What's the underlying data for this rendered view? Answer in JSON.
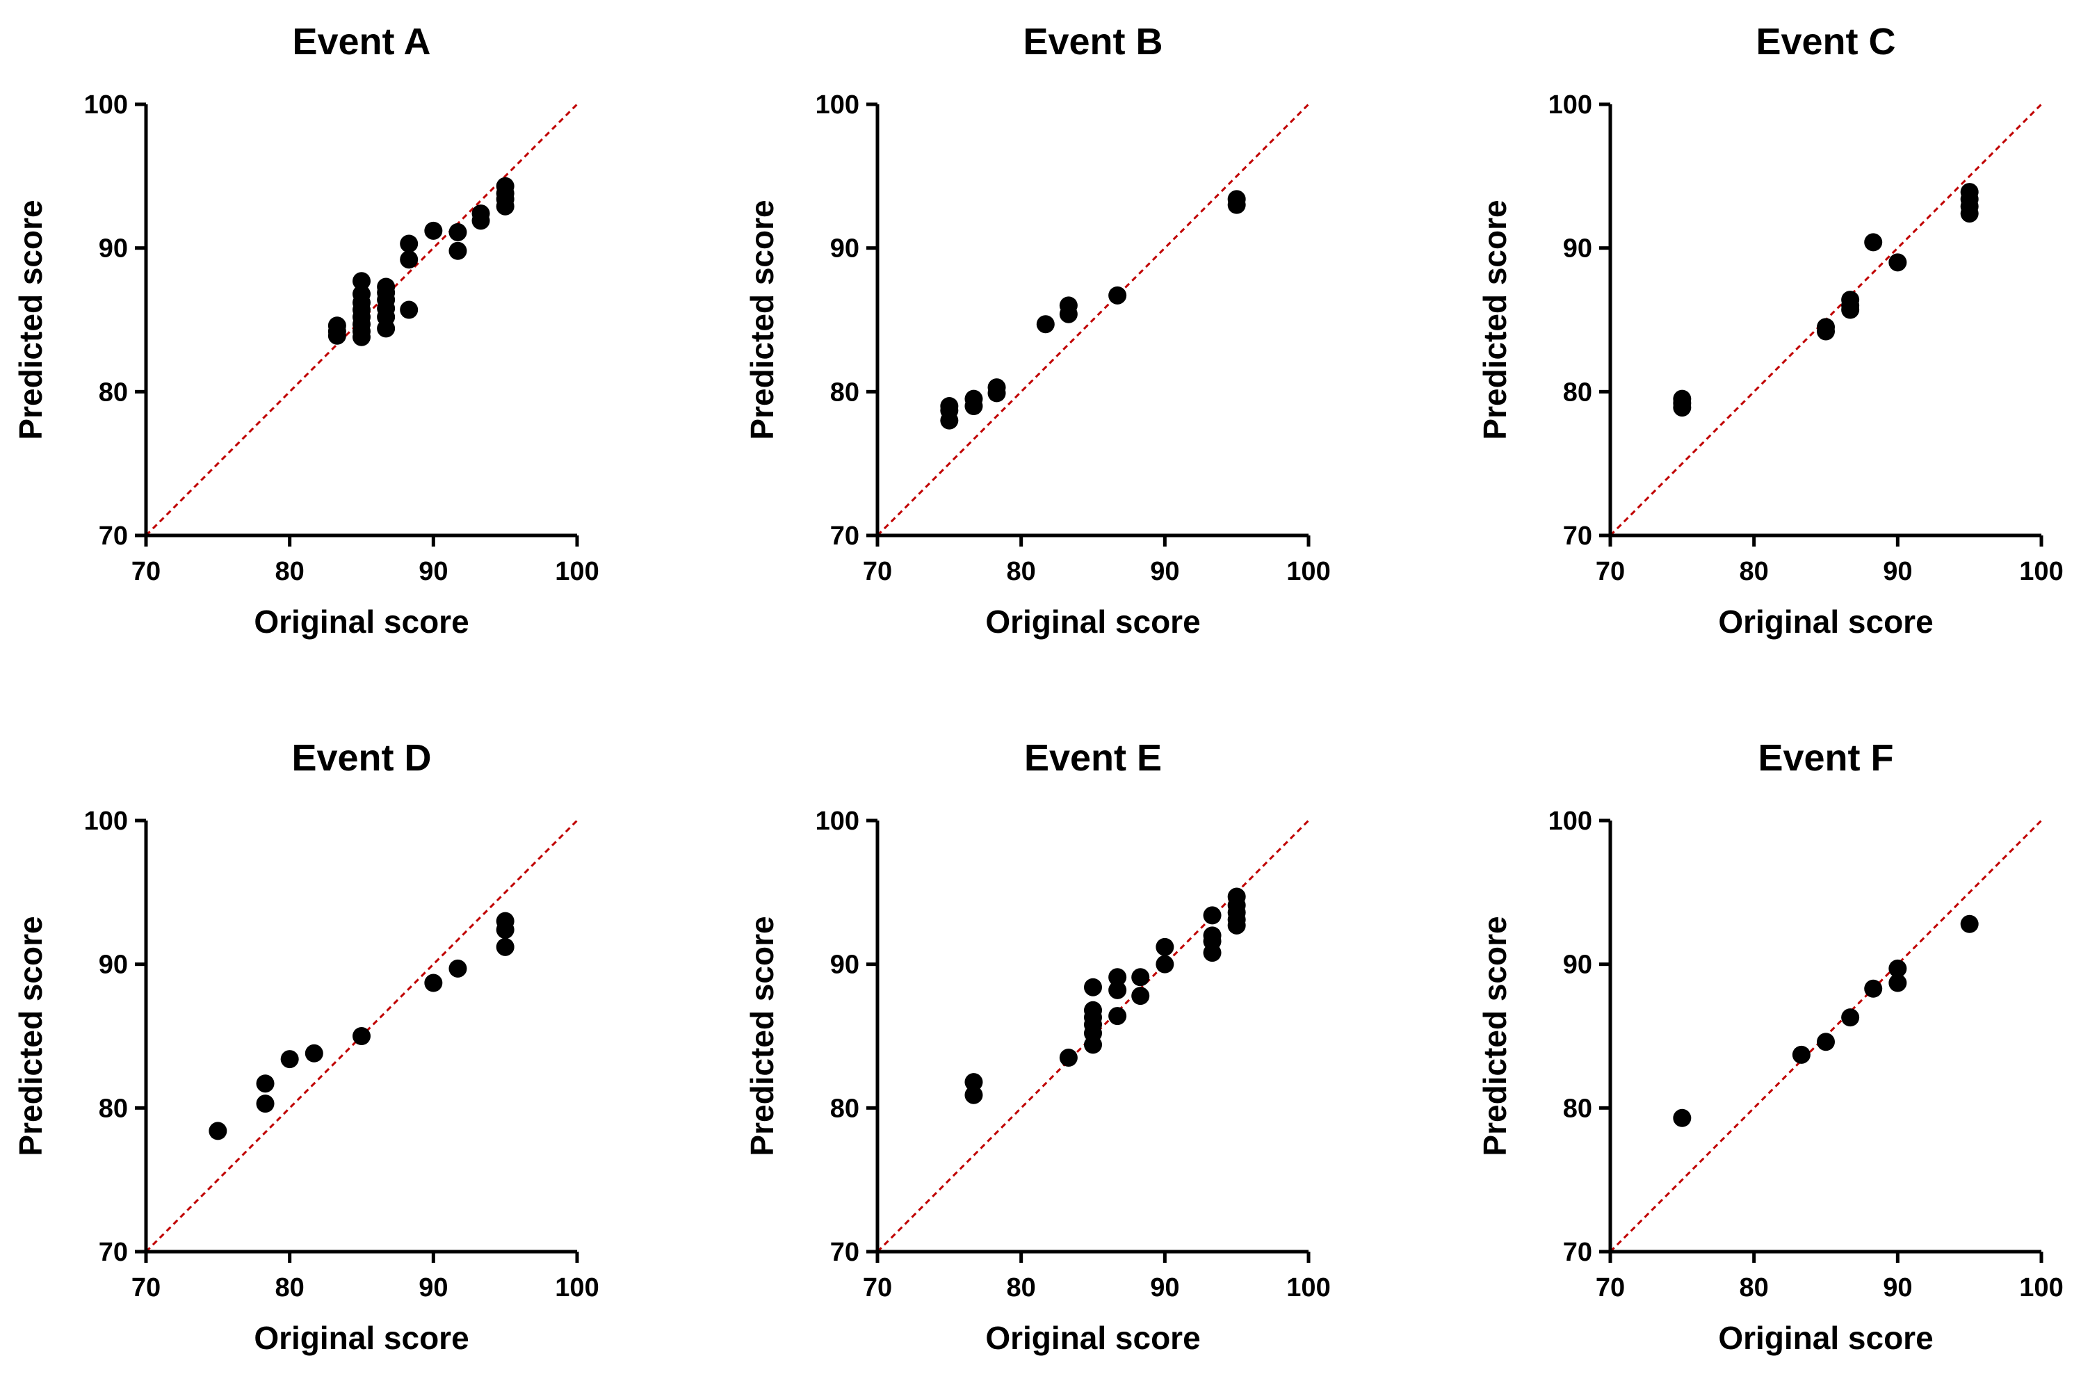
{
  "chart_data": [
    {
      "type": "scatter",
      "title": "Event A",
      "xlabel": "Original score",
      "ylabel": "Predicted score",
      "xlim": [
        70,
        100
      ],
      "ylim": [
        70,
        100
      ],
      "xticks": [
        "70",
        "80",
        "90",
        "100"
      ],
      "yticks": [
        "70",
        "80",
        "90",
        "100"
      ],
      "reference_line": "y = x (red dashed)",
      "points": [
        {
          "x": 83.3,
          "y": 83.9
        },
        {
          "x": 83.3,
          "y": 84.2
        },
        {
          "x": 83.3,
          "y": 84.6
        },
        {
          "x": 85.0,
          "y": 83.8
        },
        {
          "x": 85.0,
          "y": 84.2
        },
        {
          "x": 85.0,
          "y": 84.7
        },
        {
          "x": 85.0,
          "y": 85.2
        },
        {
          "x": 85.0,
          "y": 85.7
        },
        {
          "x": 85.0,
          "y": 86.2
        },
        {
          "x": 85.0,
          "y": 86.8
        },
        {
          "x": 85.0,
          "y": 87.7
        },
        {
          "x": 86.7,
          "y": 84.4
        },
        {
          "x": 86.7,
          "y": 85.2
        },
        {
          "x": 86.7,
          "y": 85.8
        },
        {
          "x": 86.7,
          "y": 86.4
        },
        {
          "x": 86.7,
          "y": 86.9
        },
        {
          "x": 86.7,
          "y": 87.3
        },
        {
          "x": 88.3,
          "y": 85.7
        },
        {
          "x": 88.3,
          "y": 89.2
        },
        {
          "x": 88.3,
          "y": 90.3
        },
        {
          "x": 90.0,
          "y": 91.2
        },
        {
          "x": 91.7,
          "y": 89.8
        },
        {
          "x": 91.7,
          "y": 91.1
        },
        {
          "x": 93.3,
          "y": 91.9
        },
        {
          "x": 93.3,
          "y": 92.4
        },
        {
          "x": 95.0,
          "y": 92.9
        },
        {
          "x": 95.0,
          "y": 93.4
        },
        {
          "x": 95.0,
          "y": 93.8
        },
        {
          "x": 95.0,
          "y": 94.3
        }
      ]
    },
    {
      "type": "scatter",
      "title": "Event B",
      "xlabel": "Original score",
      "ylabel": "Predicted score",
      "xlim": [
        70,
        100
      ],
      "ylim": [
        70,
        100
      ],
      "xticks": [
        "70",
        "80",
        "90",
        "100"
      ],
      "yticks": [
        "70",
        "80",
        "90",
        "100"
      ],
      "reference_line": "y = x (red dashed)",
      "points": [
        {
          "x": 75.0,
          "y": 78.0
        },
        {
          "x": 75.0,
          "y": 78.7
        },
        {
          "x": 75.0,
          "y": 79.0
        },
        {
          "x": 76.7,
          "y": 79.0
        },
        {
          "x": 76.7,
          "y": 79.5
        },
        {
          "x": 78.3,
          "y": 79.9
        },
        {
          "x": 78.3,
          "y": 80.3
        },
        {
          "x": 81.7,
          "y": 84.7
        },
        {
          "x": 83.3,
          "y": 85.4
        },
        {
          "x": 83.3,
          "y": 86.0
        },
        {
          "x": 86.7,
          "y": 86.7
        },
        {
          "x": 95.0,
          "y": 93.0
        },
        {
          "x": 95.0,
          "y": 93.4
        }
      ]
    },
    {
      "type": "scatter",
      "title": "Event C",
      "xlabel": "Original score",
      "ylabel": "Predicted score",
      "xlim": [
        70,
        100
      ],
      "ylim": [
        70,
        100
      ],
      "xticks": [
        "70",
        "80",
        "90",
        "100"
      ],
      "yticks": [
        "70",
        "80",
        "90",
        "100"
      ],
      "reference_line": "y = x (red dashed)",
      "points": [
        {
          "x": 75.0,
          "y": 78.9
        },
        {
          "x": 75.0,
          "y": 79.2
        },
        {
          "x": 75.0,
          "y": 79.5
        },
        {
          "x": 85.0,
          "y": 84.2
        },
        {
          "x": 85.0,
          "y": 84.5
        },
        {
          "x": 86.7,
          "y": 85.7
        },
        {
          "x": 86.7,
          "y": 86.0
        },
        {
          "x": 86.7,
          "y": 86.4
        },
        {
          "x": 88.3,
          "y": 90.4
        },
        {
          "x": 90.0,
          "y": 89.0
        },
        {
          "x": 95.0,
          "y": 92.4
        },
        {
          "x": 95.0,
          "y": 92.9
        },
        {
          "x": 95.0,
          "y": 93.4
        },
        {
          "x": 95.0,
          "y": 93.9
        }
      ]
    },
    {
      "type": "scatter",
      "title": "Event D",
      "xlabel": "Original score",
      "ylabel": "Predicted score",
      "xlim": [
        70,
        100
      ],
      "ylim": [
        70,
        100
      ],
      "xticks": [
        "70",
        "80",
        "90",
        "100"
      ],
      "yticks": [
        "70",
        "80",
        "90",
        "100"
      ],
      "reference_line": "y = x (red dashed)",
      "points": [
        {
          "x": 75.0,
          "y": 78.4
        },
        {
          "x": 78.3,
          "y": 80.3
        },
        {
          "x": 78.3,
          "y": 81.7
        },
        {
          "x": 80.0,
          "y": 83.4
        },
        {
          "x": 81.7,
          "y": 83.8
        },
        {
          "x": 85.0,
          "y": 85.0
        },
        {
          "x": 90.0,
          "y": 88.7
        },
        {
          "x": 91.7,
          "y": 89.7
        },
        {
          "x": 95.0,
          "y": 91.2
        },
        {
          "x": 95.0,
          "y": 92.4
        },
        {
          "x": 95.0,
          "y": 93.0
        }
      ]
    },
    {
      "type": "scatter",
      "title": "Event E",
      "xlabel": "Original score",
      "ylabel": "Predicted score",
      "xlim": [
        70,
        100
      ],
      "ylim": [
        70,
        100
      ],
      "xticks": [
        "70",
        "80",
        "90",
        "100"
      ],
      "yticks": [
        "70",
        "80",
        "90",
        "100"
      ],
      "reference_line": "y = x (red dashed)",
      "points": [
        {
          "x": 76.7,
          "y": 80.9
        },
        {
          "x": 76.7,
          "y": 81.8
        },
        {
          "x": 83.3,
          "y": 83.5
        },
        {
          "x": 85.0,
          "y": 84.4
        },
        {
          "x": 85.0,
          "y": 85.2
        },
        {
          "x": 85.0,
          "y": 85.8
        },
        {
          "x": 85.0,
          "y": 86.3
        },
        {
          "x": 85.0,
          "y": 86.8
        },
        {
          "x": 85.0,
          "y": 88.4
        },
        {
          "x": 86.7,
          "y": 86.4
        },
        {
          "x": 86.7,
          "y": 88.2
        },
        {
          "x": 86.7,
          "y": 89.1
        },
        {
          "x": 88.3,
          "y": 87.8
        },
        {
          "x": 88.3,
          "y": 89.1
        },
        {
          "x": 90.0,
          "y": 90.0
        },
        {
          "x": 90.0,
          "y": 91.2
        },
        {
          "x": 93.3,
          "y": 90.8
        },
        {
          "x": 93.3,
          "y": 91.6
        },
        {
          "x": 93.3,
          "y": 92.0
        },
        {
          "x": 93.3,
          "y": 93.4
        },
        {
          "x": 95.0,
          "y": 92.7
        },
        {
          "x": 95.0,
          "y": 93.1
        },
        {
          "x": 95.0,
          "y": 93.6
        },
        {
          "x": 95.0,
          "y": 94.1
        },
        {
          "x": 95.0,
          "y": 94.7
        }
      ]
    },
    {
      "type": "scatter",
      "title": "Event F",
      "xlabel": "Original score",
      "ylabel": "Predicted score",
      "xlim": [
        70,
        100
      ],
      "ylim": [
        70,
        100
      ],
      "xticks": [
        "70",
        "80",
        "90",
        "100"
      ],
      "yticks": [
        "70",
        "80",
        "90",
        "100"
      ],
      "reference_line": "y = x (red dashed)",
      "points": [
        {
          "x": 75.0,
          "y": 79.3
        },
        {
          "x": 83.3,
          "y": 83.7
        },
        {
          "x": 85.0,
          "y": 84.6
        },
        {
          "x": 86.7,
          "y": 86.3
        },
        {
          "x": 88.3,
          "y": 88.3
        },
        {
          "x": 90.0,
          "y": 88.7
        },
        {
          "x": 90.0,
          "y": 89.7
        },
        {
          "x": 95.0,
          "y": 92.8
        }
      ]
    }
  ],
  "colors": {
    "points": "#000000",
    "axes": "#000000",
    "reference_line": "#c00000"
  }
}
